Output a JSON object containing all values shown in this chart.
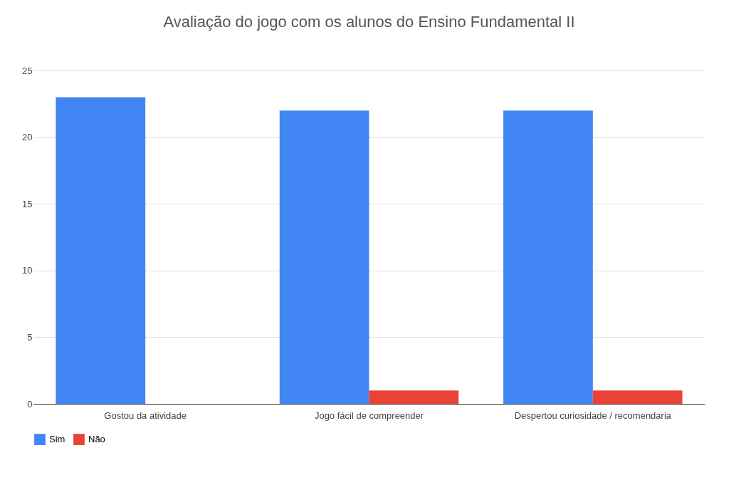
{
  "chart_data": {
    "type": "bar",
    "title": "Avaliação do jogo com os alunos do Ensino Fundamental II",
    "categories": [
      "Gostou da atividade",
      "Jogo fácil de compreender",
      "Despertou curiosidade / recomendaria"
    ],
    "series": [
      {
        "name": "Sim",
        "color": "#4285f4",
        "values": [
          23,
          22,
          22
        ]
      },
      {
        "name": "Não",
        "color": "#ea4335",
        "values": [
          0,
          1,
          1
        ]
      }
    ],
    "ylim": [
      0,
      25
    ],
    "yticks": [
      0,
      5,
      10,
      15,
      20,
      25
    ],
    "grid": "y",
    "legend": "bottom"
  }
}
